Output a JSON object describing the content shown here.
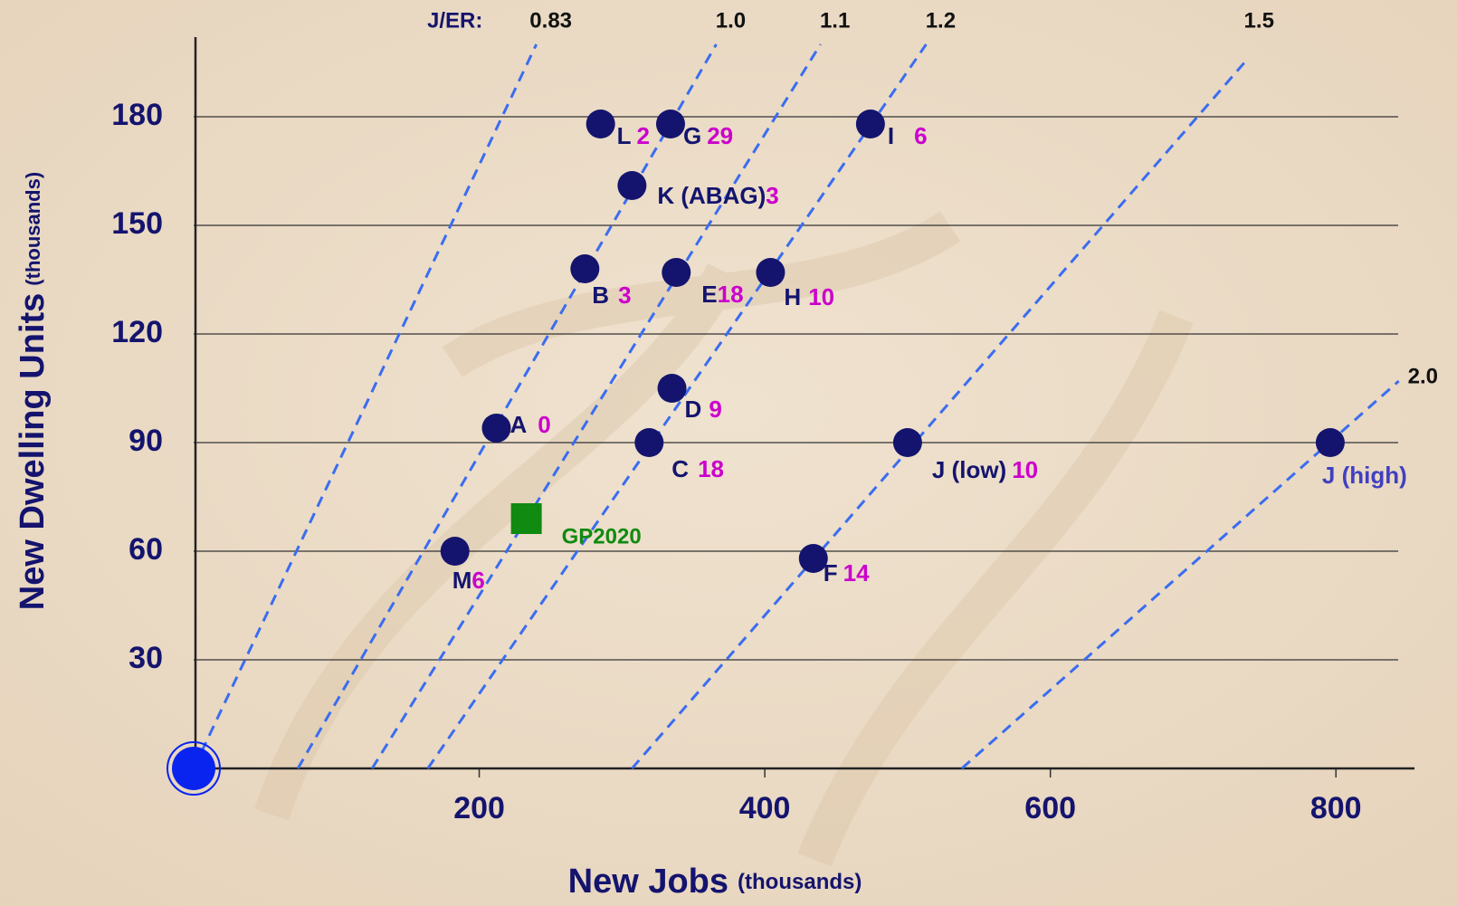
{
  "chart_data": {
    "type": "scatter",
    "x_label": "New Jobs",
    "x_label_unit": "(thousands)",
    "y_label": "New Dwelling Units",
    "y_label_unit": "(thousands)",
    "ratio_title": "J/ER:",
    "xlim": [
      0,
      855
    ],
    "ylim": [
      0,
      202
    ],
    "xticks": [
      200,
      400,
      600,
      800
    ],
    "yticks": [
      30,
      60,
      90,
      120,
      150,
      180
    ],
    "grid": true,
    "point_color": "#14146e",
    "note_color": "#cc00cc",
    "line_color": "#3a6df0",
    "points": [
      {
        "label": "L",
        "note": "2",
        "x": 285,
        "y": 178
      },
      {
        "label": "G",
        "note": "29",
        "x": 334,
        "y": 178
      },
      {
        "label": "I",
        "note": "6",
        "x": 474,
        "y": 178
      },
      {
        "label": "K (ABAG)",
        "note": "3",
        "x": 307,
        "y": 161
      },
      {
        "label": "B",
        "note": "3",
        "x": 274,
        "y": 138
      },
      {
        "label": "E",
        "note": "18",
        "x": 338,
        "y": 137
      },
      {
        "label": "H",
        "note": "10",
        "x": 404,
        "y": 137
      },
      {
        "label": "D",
        "note": "9",
        "x": 335,
        "y": 105
      },
      {
        "label": "A",
        "note": "0",
        "x": 212,
        "y": 94
      },
      {
        "label": "C",
        "note": "18",
        "x": 319,
        "y": 90
      },
      {
        "label": "J (low)",
        "note": "10",
        "x": 500,
        "y": 90
      },
      {
        "label": "J (high)",
        "x": 796,
        "y": 90
      },
      {
        "label": "M",
        "note": "6",
        "x": 183,
        "y": 60
      },
      {
        "label": "F",
        "note": "14",
        "x": 434,
        "y": 58
      }
    ],
    "highlight": {
      "label": "GP2020",
      "x": 233,
      "y": 69,
      "color": "#108a10"
    },
    "origin_marker": {
      "x": 0,
      "y": 0,
      "color": "#0a24f0"
    },
    "reference_lines": [
      {
        "label": "0.83",
        "x": [
          0,
          240
        ],
        "y": [
          0,
          200
        ]
      },
      {
        "label": "1.0",
        "x": [
          73,
          366
        ],
        "y": [
          0,
          200
        ]
      },
      {
        "label": "1.1",
        "x": [
          125,
          439
        ],
        "y": [
          0,
          200
        ]
      },
      {
        "label": "1.2",
        "x": [
          164,
          513
        ],
        "y": [
          0,
          200
        ]
      },
      {
        "label": "1.5",
        "x": [
          307,
          736
        ],
        "y": [
          0,
          195
        ]
      },
      {
        "label": "2.0",
        "x": [
          538,
          844
        ],
        "y": [
          0,
          107
        ]
      }
    ]
  }
}
